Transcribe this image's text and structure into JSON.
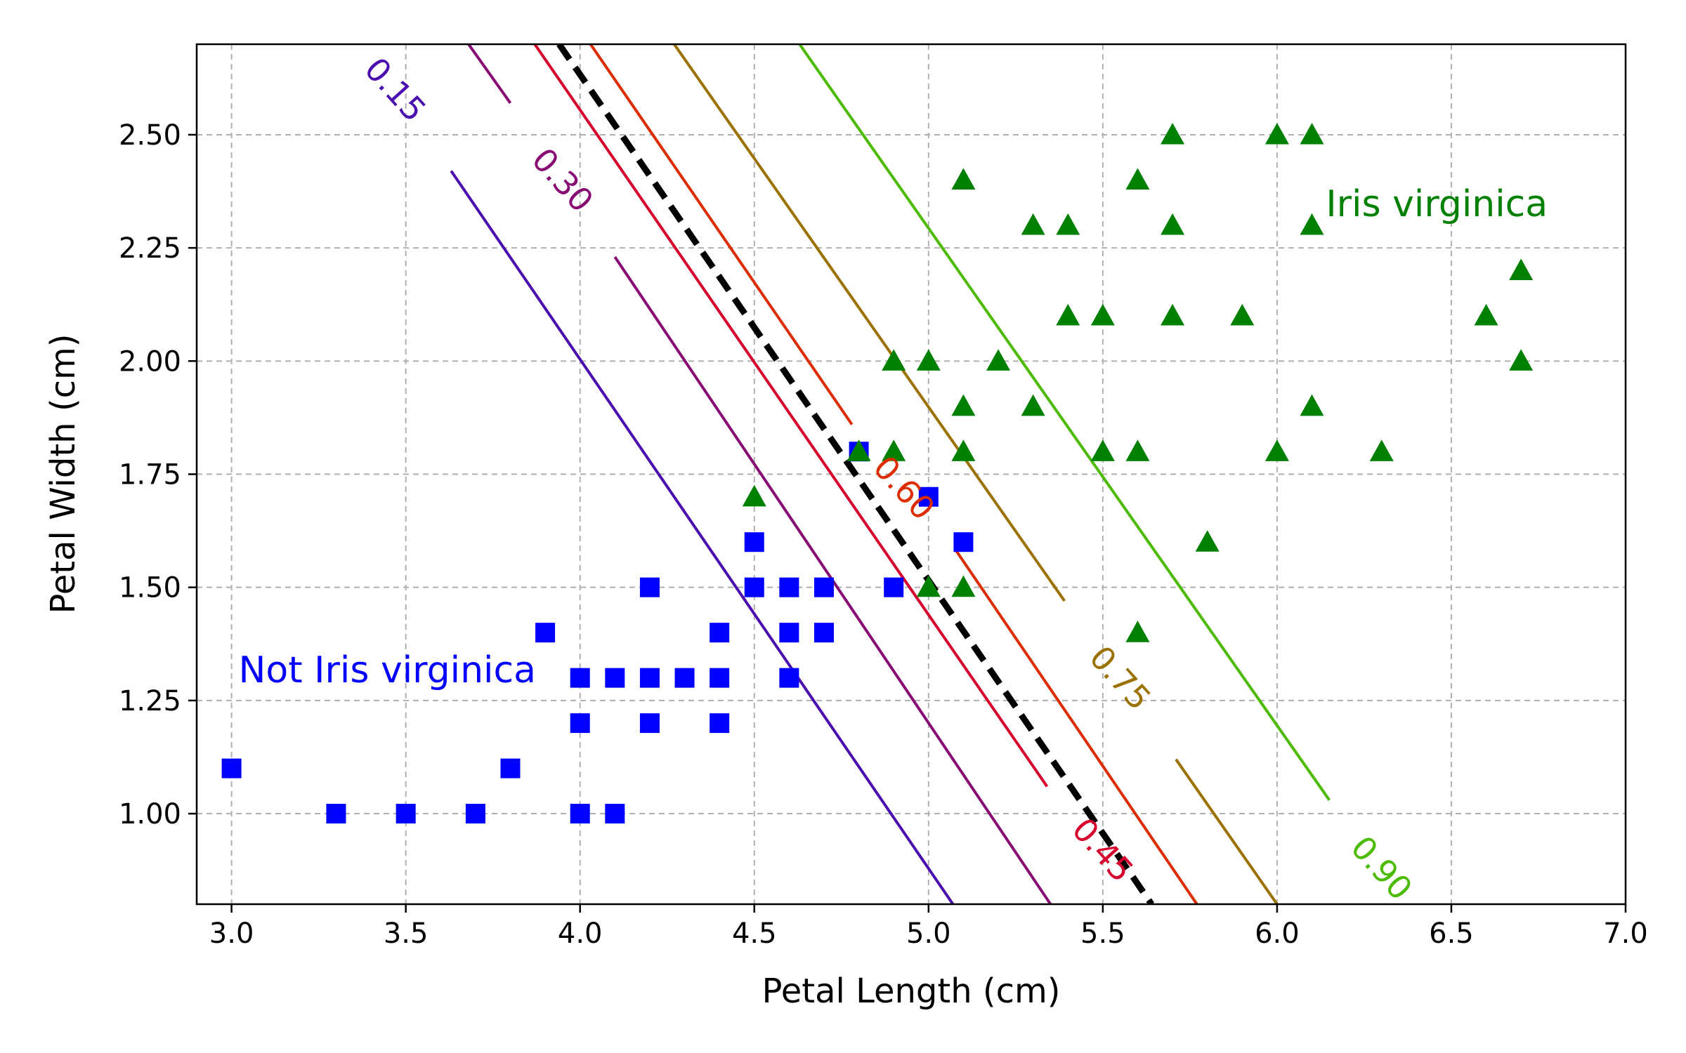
{
  "chart_data": {
    "type": "scatter",
    "xlabel": "Petal Length (cm)",
    "ylabel": "Petal Width (cm)",
    "xlim": [
      2.9,
      7.0
    ],
    "ylim": [
      0.8,
      2.7
    ],
    "grid": true,
    "x_ticks": [
      {
        "value": 3.0,
        "label": "3.0"
      },
      {
        "value": 3.5,
        "label": "3.5"
      },
      {
        "value": 4.0,
        "label": "4.0"
      },
      {
        "value": 4.5,
        "label": "4.5"
      },
      {
        "value": 5.0,
        "label": "5.0"
      },
      {
        "value": 5.5,
        "label": "5.5"
      },
      {
        "value": 6.0,
        "label": "6.0"
      },
      {
        "value": 6.5,
        "label": "6.5"
      },
      {
        "value": 7.0,
        "label": "7.0"
      }
    ],
    "y_ticks": [
      {
        "value": 1.0,
        "label": "1.00"
      },
      {
        "value": 1.25,
        "label": "1.25"
      },
      {
        "value": 1.5,
        "label": "1.50"
      },
      {
        "value": 1.75,
        "label": "1.75"
      },
      {
        "value": 2.0,
        "label": "2.00"
      },
      {
        "value": 2.25,
        "label": "2.25"
      },
      {
        "value": 2.5,
        "label": "2.50"
      }
    ],
    "series": [
      {
        "marker": "square",
        "color": "#0000ff",
        "points": [
          [
            3.0,
            1.1
          ],
          [
            3.3,
            1.0
          ],
          [
            3.5,
            1.0
          ],
          [
            3.7,
            1.0
          ],
          [
            3.8,
            1.1
          ],
          [
            3.9,
            1.4
          ],
          [
            4.0,
            1.0
          ],
          [
            4.0,
            1.2
          ],
          [
            4.0,
            1.3
          ],
          [
            4.1,
            1.0
          ],
          [
            4.1,
            1.3
          ],
          [
            4.2,
            1.2
          ],
          [
            4.2,
            1.3
          ],
          [
            4.2,
            1.5
          ],
          [
            4.3,
            1.3
          ],
          [
            4.4,
            1.2
          ],
          [
            4.4,
            1.3
          ],
          [
            4.4,
            1.4
          ],
          [
            4.5,
            1.5
          ],
          [
            4.5,
            1.6
          ],
          [
            4.6,
            1.3
          ],
          [
            4.6,
            1.4
          ],
          [
            4.6,
            1.5
          ],
          [
            4.7,
            1.4
          ],
          [
            4.7,
            1.5
          ],
          [
            4.8,
            1.8
          ],
          [
            4.9,
            1.5
          ],
          [
            5.0,
            1.7
          ],
          [
            5.1,
            1.6
          ]
        ]
      },
      {
        "marker": "triangle",
        "color": "#008000",
        "points": [
          [
            4.5,
            1.7
          ],
          [
            4.8,
            1.8
          ],
          [
            4.9,
            1.8
          ],
          [
            4.9,
            2.0
          ],
          [
            5.0,
            1.5
          ],
          [
            5.0,
            2.0
          ],
          [
            5.1,
            1.5
          ],
          [
            5.1,
            1.8
          ],
          [
            5.1,
            1.9
          ],
          [
            5.1,
            2.4
          ],
          [
            5.2,
            2.0
          ],
          [
            5.3,
            1.9
          ],
          [
            5.3,
            2.3
          ],
          [
            5.4,
            2.1
          ],
          [
            5.4,
            2.3
          ],
          [
            5.5,
            1.8
          ],
          [
            5.5,
            2.1
          ],
          [
            5.6,
            1.4
          ],
          [
            5.6,
            1.8
          ],
          [
            5.6,
            2.4
          ],
          [
            5.7,
            2.1
          ],
          [
            5.7,
            2.3
          ],
          [
            5.7,
            2.5
          ],
          [
            5.8,
            1.6
          ],
          [
            5.9,
            2.1
          ],
          [
            6.0,
            1.8
          ],
          [
            6.0,
            2.5
          ],
          [
            6.1,
            1.9
          ],
          [
            6.1,
            2.3
          ],
          [
            6.1,
            2.5
          ],
          [
            6.3,
            1.8
          ],
          [
            6.6,
            2.1
          ],
          [
            6.7,
            2.0
          ],
          [
            6.7,
            2.2
          ]
        ]
      }
    ],
    "annotations": [
      {
        "text": "Not Iris virginica",
        "x": 3.02,
        "y": 1.29,
        "color": "#0000ff",
        "anchor": "start"
      },
      {
        "text": "Iris virginica",
        "x": 6.14,
        "y": 2.32,
        "color": "#008000",
        "anchor": "start"
      }
    ],
    "decision_boundary": {
      "color": "#000000",
      "style": "dashed",
      "points": [
        [
          3.94,
          2.7
        ],
        [
          5.64,
          0.8
        ]
      ]
    },
    "contours": [
      {
        "level": "0.15",
        "color": "#4b0fb0",
        "segments": [
          [
            [
              3.63,
              2.42
            ],
            [
              5.07,
              0.8
            ]
          ]
        ],
        "label": {
          "text": "0.15",
          "x": 3.47,
          "y": 2.6,
          "angle": 48
        }
      },
      {
        "level": "0.30",
        "color": "#870c73",
        "segments": [
          [
            [
              3.68,
              2.7
            ],
            [
              3.8,
              2.57
            ]
          ],
          [
            [
              4.1,
              2.23
            ],
            [
              5.35,
              0.8
            ]
          ]
        ],
        "label": {
          "text": "0.30",
          "x": 3.95,
          "y": 2.4,
          "angle": 48
        }
      },
      {
        "level": "0.45",
        "color": "#d6002c",
        "segments": [
          [
            [
              3.87,
              2.7
            ],
            [
              5.34,
              1.06
            ]
          ]
        ],
        "label": {
          "text": "0.45",
          "x": 5.5,
          "y": 0.92,
          "angle": 48
        }
      },
      {
        "level": "0.60",
        "color": "#dc2c00",
        "segments": [
          [
            [
              4.03,
              2.7
            ],
            [
              4.78,
              1.86
            ]
          ],
          [
            [
              5.08,
              1.58
            ],
            [
              5.77,
              0.8
            ]
          ]
        ],
        "label": {
          "text": "0.60",
          "x": 4.93,
          "y": 1.72,
          "angle": 48
        }
      },
      {
        "level": "0.75",
        "color": "#9b7200",
        "segments": [
          [
            [
              4.27,
              2.7
            ],
            [
              5.39,
              1.47
            ]
          ],
          [
            [
              5.71,
              1.12
            ],
            [
              6.0,
              0.8
            ]
          ]
        ],
        "label": {
          "text": "0.75",
          "x": 5.55,
          "y": 1.3,
          "angle": 48
        }
      },
      {
        "level": "0.90",
        "color": "#4cbb00",
        "segments": [
          [
            [
              4.63,
              2.7
            ],
            [
              6.15,
              1.03
            ]
          ]
        ],
        "label": {
          "text": "0.90",
          "x": 6.3,
          "y": 0.88,
          "angle": 48
        }
      }
    ]
  }
}
